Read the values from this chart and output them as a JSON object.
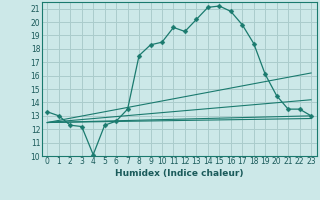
{
  "xlabel": "Humidex (Indice chaleur)",
  "bg_color": "#cce8e8",
  "grid_color": "#aacccc",
  "line_color": "#1a7a6e",
  "xlim": [
    -0.5,
    23.5
  ],
  "ylim": [
    10,
    21.5
  ],
  "xticks": [
    0,
    1,
    2,
    3,
    4,
    5,
    6,
    7,
    8,
    9,
    10,
    11,
    12,
    13,
    14,
    15,
    16,
    17,
    18,
    19,
    20,
    21,
    22,
    23
  ],
  "yticks": [
    10,
    11,
    12,
    13,
    14,
    15,
    16,
    17,
    18,
    19,
    20,
    21
  ],
  "main_series": {
    "x": [
      0,
      1,
      2,
      3,
      4,
      5,
      6,
      7,
      8,
      9,
      10,
      11,
      12,
      13,
      14,
      15,
      16,
      17,
      18,
      19,
      20,
      21,
      22,
      23
    ],
    "y": [
      13.3,
      13.0,
      12.3,
      12.2,
      10.1,
      12.3,
      12.6,
      13.5,
      17.5,
      18.3,
      18.5,
      19.6,
      19.3,
      20.2,
      21.1,
      21.2,
      20.8,
      19.8,
      18.4,
      16.1,
      14.5,
      13.5,
      13.5,
      13.0
    ]
  },
  "linear_series": [
    {
      "x": [
        0,
        23
      ],
      "y": [
        12.5,
        16.2
      ]
    },
    {
      "x": [
        0,
        23
      ],
      "y": [
        12.5,
        14.2
      ]
    },
    {
      "x": [
        0,
        23
      ],
      "y": [
        12.5,
        13.0
      ]
    },
    {
      "x": [
        0,
        23
      ],
      "y": [
        12.5,
        12.8
      ]
    }
  ]
}
